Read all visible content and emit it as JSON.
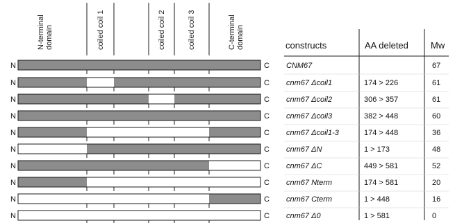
{
  "domains": [
    {
      "label_lines": [
        "N-terminal",
        "domain"
      ]
    },
    {
      "label_lines": [
        "coiled coil 1"
      ]
    },
    {
      "label_lines": [
        "coiled coil 2"
      ]
    },
    {
      "label_lines": [
        "coiled coil 3"
      ]
    },
    {
      "label_lines": [
        "C-terminal",
        "domain"
      ]
    }
  ],
  "end_labels": {
    "n": "N",
    "c": "C"
  },
  "table": {
    "headers": [
      "constructs",
      "AA deleted",
      "Mw"
    ],
    "rows": [
      {
        "name": "CNM67",
        "aa": "",
        "mw": "67",
        "filled": [
          true,
          true,
          true,
          true,
          true,
          true,
          true
        ]
      },
      {
        "name": "cnm67 Δcoil1",
        "aa": "174 > 226",
        "mw": "61",
        "filled": [
          true,
          false,
          true,
          true,
          true,
          true,
          true
        ]
      },
      {
        "name": "cnm67 Δcoil2",
        "aa": "306 > 357",
        "mw": "61",
        "filled": [
          true,
          true,
          true,
          false,
          true,
          true,
          true
        ]
      },
      {
        "name": "cnm67 Δcoil3",
        "aa": "382 > 448",
        "mw": "60",
        "filled": [
          true,
          true,
          true,
          true,
          true,
          false,
          true
        ]
      },
      {
        "name": "cnm67 Δcoil1-3",
        "aa": "174 > 448",
        "mw": "36",
        "filled": [
          true,
          false,
          false,
          false,
          false,
          false,
          true
        ]
      },
      {
        "name": "cnm67 ΔN",
        "aa": "1 > 173",
        "mw": "48",
        "filled": [
          false,
          true,
          true,
          true,
          true,
          true,
          true
        ]
      },
      {
        "name": "cnm67 ΔC",
        "aa": "449 > 581",
        "mw": "52",
        "filled": [
          true,
          true,
          true,
          true,
          true,
          true,
          false
        ]
      },
      {
        "name": "cnm67 Nterm",
        "aa": "174 > 581",
        "mw": "20",
        "filled": [
          true,
          false,
          false,
          false,
          false,
          false,
          false
        ]
      },
      {
        "name": "cnm67 Cterm",
        "aa": "1 > 448",
        "mw": "16",
        "filled": [
          false,
          false,
          false,
          false,
          false,
          false,
          true
        ]
      },
      {
        "name": "cnm67 Δ0",
        "aa": "1 > 581",
        "mw": "0",
        "filled": [
          false,
          false,
          false,
          false,
          false,
          false,
          false
        ]
      }
    ]
  },
  "colors": {
    "filled": "#8c8c8c",
    "empty": "#ffffff",
    "line": "#1a1a1a"
  }
}
